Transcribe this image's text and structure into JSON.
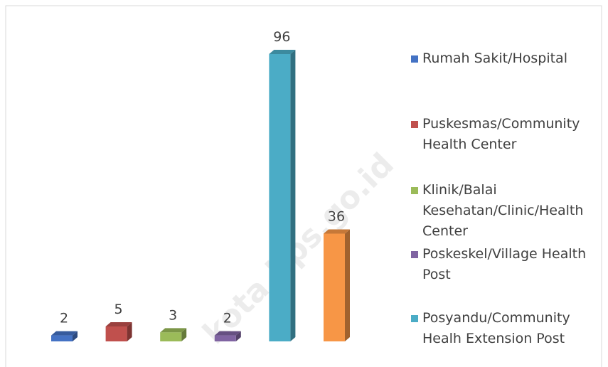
{
  "chart_data": {
    "type": "bar3d",
    "categories": [
      "Rumah Sakit/Hospital",
      "Puskesmas/Community Health Center",
      "Klinik/Balai Kesehatan/Clinic/Health Center",
      "Poskeskel/Village Health Post",
      "Posyandu/Community Healh Extension Post",
      null
    ],
    "values": [
      2,
      5,
      3,
      2,
      96,
      36
    ],
    "colors": [
      "#4472c4",
      "#c0504d",
      "#9bbb59",
      "#8064a2",
      "#4bacc6",
      "#f79646"
    ],
    "legend": "right",
    "watermark": "kota.bps.go.id"
  }
}
